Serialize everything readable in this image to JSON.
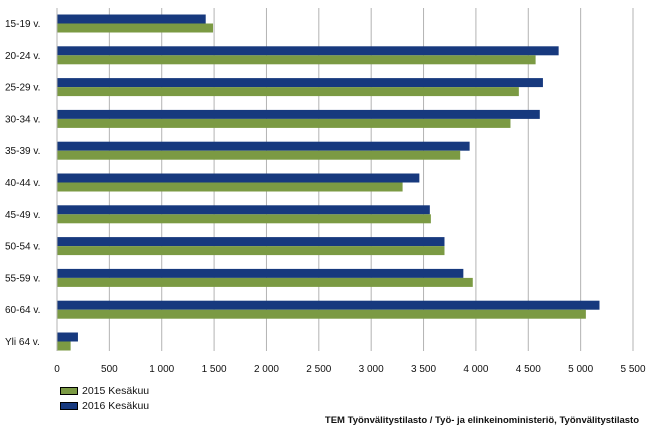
{
  "chart_data": {
    "type": "bar",
    "orientation": "horizontal",
    "categories": [
      "15-19 v.",
      "20-24 v.",
      "25-29 v.",
      "30-34 v.",
      "35-39 v.",
      "40-44 v.",
      "45-49 v.",
      "50-54 v.",
      "55-59 v.",
      "60-64 v.",
      "Yli 64 v."
    ],
    "series": [
      {
        "name": "2016 Kesäkuu",
        "color": "#17397e",
        "values": [
          1420,
          4790,
          4640,
          4610,
          3940,
          3460,
          3560,
          3700,
          3880,
          5180,
          200
        ]
      },
      {
        "name": "2015 Kesäkuu",
        "color": "#7b9a43",
        "values": [
          1490,
          4570,
          4410,
          4330,
          3850,
          3300,
          3570,
          3700,
          3970,
          5050,
          130
        ]
      }
    ],
    "xlim": [
      0,
      5500
    ],
    "xticks": [
      "0",
      "500",
      "1 000",
      "1 500",
      "2 000",
      "2 500",
      "3 000",
      "3 500",
      "4 000",
      "4 500",
      "5 000",
      "5 500"
    ],
    "grid": true,
    "legend_position": "bottom-left"
  },
  "legend": [
    {
      "label": "2015 Kesäkuu",
      "color": "#7b9a43"
    },
    {
      "label": "2016 Kesäkuu",
      "color": "#17397e"
    }
  ],
  "source": "TEM Työnvälitystilasto / Työ- ja elinkeinoministeriö, Työnvälitystilasto"
}
